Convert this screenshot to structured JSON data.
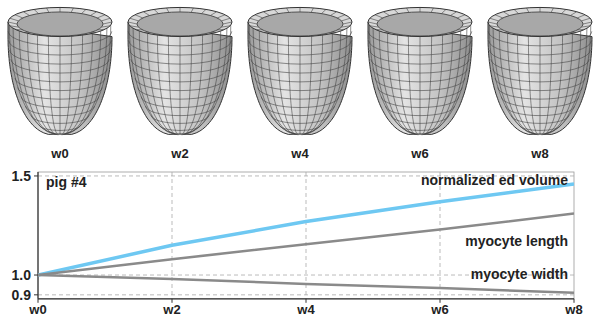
{
  "mesh_labels": [
    "w0",
    "w2",
    "w4",
    "w6",
    "w8"
  ],
  "chart_data": {
    "type": "line",
    "annotation": "pig #4",
    "categories": [
      "w0",
      "w2",
      "w4",
      "w6",
      "w8"
    ],
    "series": [
      {
        "name": "normalized ed volume",
        "color": "#6ec8f2",
        "values": [
          1.0,
          1.15,
          1.27,
          1.37,
          1.46
        ]
      },
      {
        "name": "myocyte length",
        "color": "#8a8a8a",
        "values": [
          1.0,
          1.08,
          1.155,
          1.23,
          1.31
        ]
      },
      {
        "name": "myocyte width",
        "color": "#8a8a8a",
        "values": [
          1.0,
          0.98,
          0.955,
          0.935,
          0.91
        ]
      }
    ],
    "ylim": [
      0.88,
      1.52
    ],
    "yticks": [
      0.9,
      {
        "value": 1.0,
        "label": "1.0"
      },
      {
        "value": 1.5,
        "label": "1.5"
      }
    ],
    "grid": true
  }
}
